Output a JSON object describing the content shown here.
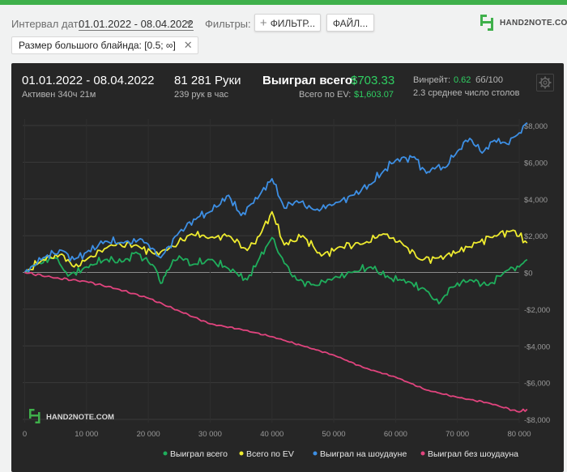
{
  "filters": {
    "interval_label": "Интервал дат:",
    "date_range": "01.01.2022 - 08.04.2022",
    "filters_label": "Фильтры:",
    "filter_button": "ФИЛЬТР...",
    "file_button": "ФАЙЛ...",
    "chip_text": "Размер большого блайнда: [0.5; ∞]",
    "chip_close": "✕"
  },
  "brand": {
    "logo_text": "HAND2NOTE.COM",
    "watermark_text": "HAND2NOTE.COM"
  },
  "summary": {
    "period": "01.01.2022 - 08.04.2022",
    "active": "Активен 340ч 21м",
    "hands": "81 281 Руки",
    "hands_per_hour": "239 рук в час",
    "won_label": "Выиграл всего:",
    "won_value": "$703.33",
    "ev_label": "Всего по EV:",
    "ev_value": "$1,603.07",
    "winrate_label": "Винрейт:",
    "winrate_value": "0.62",
    "winrate_unit": "бб/100",
    "tables": "2.3 среднее число столов"
  },
  "chart_data": {
    "type": "line",
    "x_ticks": [
      "0",
      "10 000",
      "20 000",
      "30 000",
      "40 000",
      "50 000",
      "60 000",
      "70 000",
      "80 000"
    ],
    "y_ticks": [
      "$8,000",
      "$6,000",
      "$4,000",
      "$2,000",
      "$0",
      "-$2,000",
      "-$4,000",
      "-$6,000",
      "-$8,000"
    ],
    "xlim": [
      0,
      81281
    ],
    "ylim": [
      -8000,
      8000
    ],
    "colors": {
      "won": "#1fae5c",
      "ev": "#efec2f",
      "showdown": "#3d8fe4",
      "nonshowdown": "#e1447e"
    },
    "series": [
      {
        "key": "won",
        "name": "Выиграл всего",
        "x": [
          0,
          2000,
          5000,
          7000,
          10000,
          13000,
          16000,
          18000,
          21000,
          22000,
          23000,
          25000,
          27000,
          30000,
          33000,
          36000,
          38000,
          40000,
          42000,
          44000,
          47000,
          50000,
          53000,
          56000,
          59000,
          62000,
          65000,
          67000,
          69000,
          72000,
          75000,
          78000,
          80000,
          81281
        ],
        "values": [
          0,
          500,
          800,
          -200,
          300,
          700,
          600,
          1100,
          300,
          -600,
          100,
          900,
          400,
          700,
          200,
          -400,
          800,
          1900,
          500,
          -400,
          -700,
          -300,
          0,
          300,
          -300,
          -500,
          -1000,
          -1700,
          -800,
          -400,
          -700,
          100,
          300,
          703
        ]
      },
      {
        "key": "ev",
        "name": "Всего по EV",
        "x": [
          0,
          3000,
          6000,
          8000,
          10000,
          14000,
          18000,
          21000,
          23000,
          27000,
          30000,
          33000,
          36000,
          38000,
          40000,
          42000,
          45000,
          48000,
          51000,
          55000,
          58000,
          61000,
          64000,
          67000,
          70000,
          73000,
          76000,
          79000,
          81281
        ],
        "values": [
          0,
          700,
          1000,
          300,
          700,
          1500,
          1500,
          1000,
          1200,
          2100,
          1900,
          2000,
          1200,
          2000,
          3300,
          1500,
          2000,
          900,
          1400,
          1600,
          2100,
          1600,
          700,
          800,
          1100,
          1600,
          2000,
          2300,
          1603
        ]
      },
      {
        "key": "showdown",
        "name": "Выиграл на шоудауне",
        "x": [
          0,
          3000,
          6000,
          8000,
          10000,
          13000,
          16000,
          19000,
          22000,
          25000,
          28000,
          30000,
          33000,
          35000,
          38000,
          40000,
          42000,
          44000,
          47000,
          50000,
          53000,
          56000,
          58000,
          60000,
          63000,
          65000,
          66000,
          68000,
          70000,
          72000,
          74000,
          76000,
          78000,
          80000,
          81281
        ],
        "values": [
          0,
          800,
          1200,
          700,
          1100,
          1700,
          1600,
          1800,
          800,
          2200,
          3000,
          3300,
          4200,
          3100,
          4200,
          5100,
          3500,
          3900,
          3400,
          3700,
          4200,
          4800,
          5500,
          6100,
          6300,
          5400,
          5700,
          5700,
          6600,
          7300,
          6500,
          7200,
          7000,
          7600,
          8150
        ]
      },
      {
        "key": "nonshowdown",
        "name": "Выиграл без шоудауна",
        "x": [
          0,
          5000,
          10000,
          15000,
          20000,
          25000,
          30000,
          35000,
          40000,
          45000,
          50000,
          55000,
          60000,
          65000,
          70000,
          75000,
          80000,
          81281
        ],
        "values": [
          0,
          -300,
          -500,
          -900,
          -1400,
          -2100,
          -2800,
          -3100,
          -3500,
          -4000,
          -4500,
          -5200,
          -5700,
          -6400,
          -6800,
          -7100,
          -7600,
          -7450
        ]
      }
    ]
  }
}
